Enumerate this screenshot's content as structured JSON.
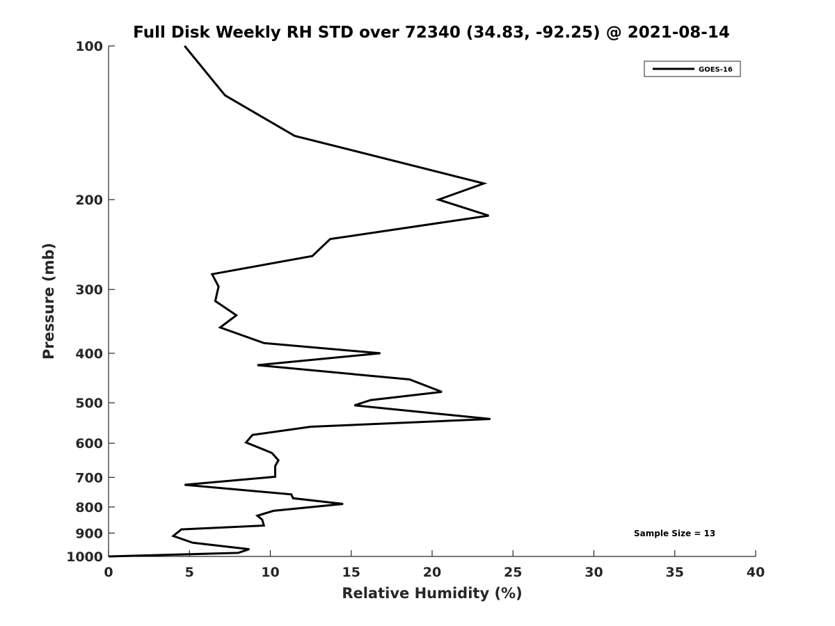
{
  "chart_data": {
    "type": "line",
    "title": "Full Disk Weekly RH STD over 72340 (34.83, -92.25) @ 2021-08-14",
    "xlabel": "Relative Humidity (%)",
    "ylabel": "Pressure (mb)",
    "xlim": [
      0,
      40
    ],
    "ylim": [
      100,
      1000
    ],
    "y_scale": "log",
    "y_reversed": true,
    "grid": false,
    "legend_position": "top-right",
    "x_ticks": [
      "0",
      "5",
      "10",
      "15",
      "20",
      "25",
      "30",
      "35",
      "40"
    ],
    "y_ticks": [
      "100",
      "200",
      "300",
      "400",
      "500",
      "600",
      "700",
      "800",
      "900",
      "1000"
    ],
    "series": [
      {
        "name": "GOES-16",
        "color": "#000000",
        "points": [
          [
            4.7,
            100
          ],
          [
            7.2,
            125
          ],
          [
            11.5,
            150
          ],
          [
            23.2,
            186
          ],
          [
            20.4,
            200
          ],
          [
            23.5,
            215
          ],
          [
            13.7,
            239
          ],
          [
            12.6,
            258
          ],
          [
            6.4,
            280
          ],
          [
            6.8,
            296
          ],
          [
            6.6,
            316
          ],
          [
            7.9,
            337
          ],
          [
            6.9,
            356
          ],
          [
            9.6,
            382
          ],
          [
            16.8,
            400
          ],
          [
            9.2,
            422
          ],
          [
            18.6,
            450
          ],
          [
            20.6,
            476
          ],
          [
            16.2,
            494
          ],
          [
            15.2,
            506
          ],
          [
            23.6,
            538
          ],
          [
            12.5,
            557
          ],
          [
            8.9,
            578
          ],
          [
            8.5,
            598
          ],
          [
            10.1,
            627
          ],
          [
            10.5,
            648
          ],
          [
            10.3,
            665
          ],
          [
            10.3,
            698
          ],
          [
            4.7,
            724
          ],
          [
            11.3,
            756
          ],
          [
            11.4,
            769
          ],
          [
            14.5,
            789
          ],
          [
            10.2,
            814
          ],
          [
            9.2,
            832
          ],
          [
            9.5,
            848
          ],
          [
            9.6,
            870
          ],
          [
            4.5,
            885
          ],
          [
            4.0,
            912
          ],
          [
            5.2,
            940
          ],
          [
            8.7,
            968
          ],
          [
            8.0,
            984
          ],
          [
            0.0,
            1000
          ]
        ]
      }
    ],
    "annotations": [
      "Sample Size = 13"
    ]
  }
}
